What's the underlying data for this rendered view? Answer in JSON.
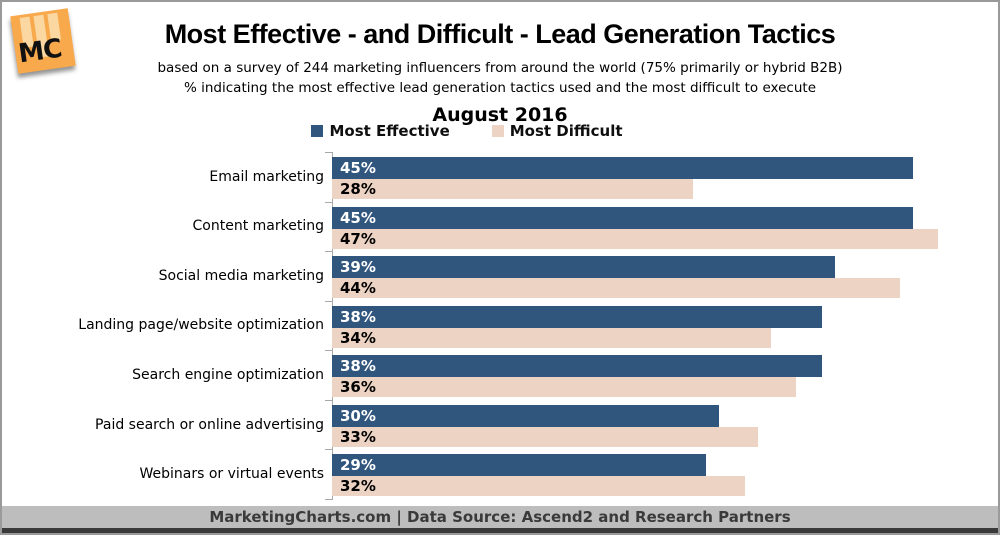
{
  "page": {
    "title": "Most Effective - and Difficult - Lead Generation Tactics",
    "subtitle1": "based on a survey of 244 marketing influencers from around the world (75% primarily or hybrid B2B)",
    "subtitle2": "% indicating the most effective lead generation tactics used and the most difficult to execute",
    "date": "August 2016",
    "logo_text": "MC"
  },
  "colors": {
    "logo-orange": "#F8A94C",
    "logo-bar": "#FBD8A2",
    "band-gray": "#BDBDBD",
    "strip-dark": "#3A3A3A",
    "axis-gray": "#A8A8A8"
  },
  "chart_data": {
    "type": "bar",
    "orientation": "horizontal",
    "title": "Most Effective - and Difficult - Lead Generation Tactics",
    "categories": [
      "Email marketing",
      "Content marketing",
      "Social media marketing",
      "Landing page/website optimization",
      "Search engine optimization",
      "Paid search or online advertising",
      "Webinars or virtual events"
    ],
    "series": [
      {
        "name": "Most Effective",
        "color": "#31567E",
        "text_color": "#FFFFFF",
        "values": [
          45,
          45,
          39,
          38,
          38,
          30,
          29
        ]
      },
      {
        "name": "Most Difficult",
        "color": "#EDD3C3",
        "text_color": "#000000",
        "values": [
          28,
          47,
          44,
          34,
          36,
          33,
          32
        ]
      }
    ],
    "value_suffix": "%",
    "xlim": [
      0,
      50
    ],
    "grid": false,
    "legend_position": "top"
  },
  "footer": {
    "text": "MarketingCharts.com | Data Source: Ascend2 and Research Partners"
  }
}
